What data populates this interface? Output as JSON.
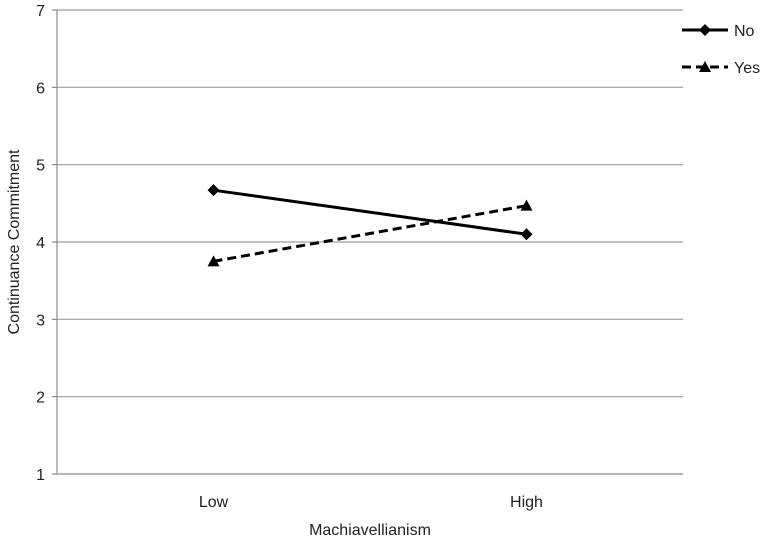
{
  "chart_data": {
    "type": "line",
    "title": "",
    "xlabel": "Machiavellianism",
    "ylabel": "Continuance Commitment",
    "categories": [
      "Low",
      "High"
    ],
    "ylim": [
      1,
      7
    ],
    "yticks": [
      "1",
      "2",
      "3",
      "4",
      "5",
      "6",
      "7"
    ],
    "grid": "horizontal",
    "legend_position": "top-right",
    "series": [
      {
        "name": "No",
        "values": [
          4.67,
          4.1
        ],
        "marker": "diamond",
        "line_style": "solid",
        "color": "#000000"
      },
      {
        "name": "Yes",
        "values": [
          3.75,
          4.47
        ],
        "marker": "triangle",
        "line_style": "dashed",
        "color": "#000000"
      }
    ]
  },
  "colors": {
    "gridline": "#9e9e9e",
    "axis": "#8c8c8c",
    "series": "#000000"
  }
}
